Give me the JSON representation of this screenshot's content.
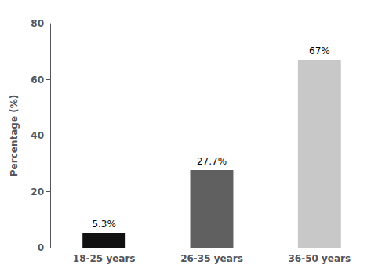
{
  "chart_data": {
    "type": "bar",
    "categories": [
      "18-25 years",
      "26-35 years",
      "36-50 years"
    ],
    "values": [
      5.3,
      27.7,
      67.0
    ],
    "value_labels": [
      "5.3%",
      "27.7%",
      "67%"
    ],
    "data_labels": true,
    "colors": [
      "#111111",
      "#606060",
      "#c8c8c8"
    ],
    "ylabel": "Percentage (%)",
    "ylim": [
      0,
      80
    ],
    "yticks": [
      0,
      20,
      40,
      60,
      80
    ],
    "grid": false
  }
}
